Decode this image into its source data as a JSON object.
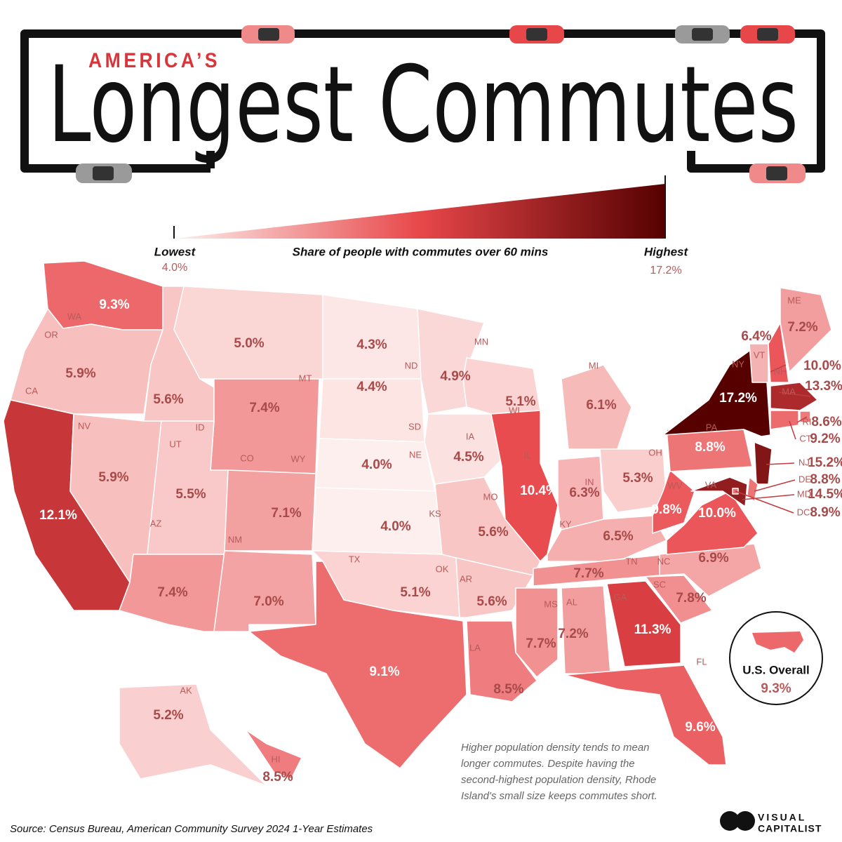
{
  "header": {
    "kicker": "AMERICA’S",
    "title": "Longest Commutes"
  },
  "legend": {
    "low_label": "Lowest",
    "low_value": 4.0,
    "low_value_label": "4.0%",
    "caption": "Share of people with commutes over 60 mins",
    "high_label": "Highest",
    "high_value": 17.2,
    "high_value_label": "17.2%",
    "colors": [
      "#fdefed",
      "#e8474a",
      "#560000"
    ]
  },
  "states": [
    {
      "abbr": "WA",
      "value": 9.3,
      "label": "9.3%"
    },
    {
      "abbr": "OR",
      "value": 5.9,
      "label": "5.9%"
    },
    {
      "abbr": "CA",
      "value": 12.1,
      "label": "12.1%"
    },
    {
      "abbr": "NV",
      "value": 5.9,
      "label": "5.9%"
    },
    {
      "abbr": "ID",
      "value": 5.6,
      "label": "5.6%"
    },
    {
      "abbr": "MT",
      "value": 5.0,
      "label": "5.0%"
    },
    {
      "abbr": "WY",
      "value": 7.4,
      "label": "7.4%"
    },
    {
      "abbr": "UT",
      "value": 5.5,
      "label": "5.5%"
    },
    {
      "abbr": "CO",
      "value": 7.1,
      "label": "7.1%"
    },
    {
      "abbr": "AZ",
      "value": 7.4,
      "label": "7.4%"
    },
    {
      "abbr": "NM",
      "value": 7.0,
      "label": "7.0%"
    },
    {
      "abbr": "ND",
      "value": 4.3,
      "label": "4.3%"
    },
    {
      "abbr": "SD",
      "value": 4.4,
      "label": "4.4%"
    },
    {
      "abbr": "NE",
      "value": 4.0,
      "label": "4.0%"
    },
    {
      "abbr": "KS",
      "value": 4.0,
      "label": "4.0%"
    },
    {
      "abbr": "OK",
      "value": 5.1,
      "label": "5.1%"
    },
    {
      "abbr": "TX",
      "value": 9.1,
      "label": "9.1%"
    },
    {
      "abbr": "MN",
      "value": 4.9,
      "label": "4.9%"
    },
    {
      "abbr": "IA",
      "value": 4.5,
      "label": "4.5%"
    },
    {
      "abbr": "MO",
      "value": 5.6,
      "label": "5.6%"
    },
    {
      "abbr": "AR",
      "value": 5.6,
      "label": "5.6%"
    },
    {
      "abbr": "LA",
      "value": 8.5,
      "label": "8.5%"
    },
    {
      "abbr": "WI",
      "value": 5.1,
      "label": "5.1%"
    },
    {
      "abbr": "IL",
      "value": 10.4,
      "label": "10.4%"
    },
    {
      "abbr": "MI",
      "value": 6.1,
      "label": "6.1%"
    },
    {
      "abbr": "IN",
      "value": 6.3,
      "label": "6.3%"
    },
    {
      "abbr": "OH",
      "value": 5.3,
      "label": "5.3%"
    },
    {
      "abbr": "KY",
      "value": 6.5,
      "label": "6.5%"
    },
    {
      "abbr": "TN",
      "value": 7.7,
      "label": "7.7%"
    },
    {
      "abbr": "MS",
      "value": 7.7,
      "label": "7.7%"
    },
    {
      "abbr": "AL",
      "value": 7.2,
      "label": "7.2%"
    },
    {
      "abbr": "GA",
      "value": 11.3,
      "label": "11.3%"
    },
    {
      "abbr": "FL",
      "value": 9.6,
      "label": "9.6%"
    },
    {
      "abbr": "SC",
      "value": 7.8,
      "label": "7.8%"
    },
    {
      "abbr": "NC",
      "value": 6.9,
      "label": "6.9%"
    },
    {
      "abbr": "VA",
      "value": 10.0,
      "label": "10.0%"
    },
    {
      "abbr": "WV",
      "value": 9.8,
      "label": "9.8%"
    },
    {
      "abbr": "PA",
      "value": 8.8,
      "label": "8.8%"
    },
    {
      "abbr": "NY",
      "value": 17.2,
      "label": "17.2%"
    },
    {
      "abbr": "VT",
      "value": 6.4,
      "label": "6.4%"
    },
    {
      "abbr": "NH",
      "value": 10.0,
      "label": "10.0%"
    },
    {
      "abbr": "ME",
      "value": 7.2,
      "label": "7.2%"
    },
    {
      "abbr": "MA",
      "value": 13.3,
      "label": "13.3%"
    },
    {
      "abbr": "RI",
      "value": 8.6,
      "label": "8.6%"
    },
    {
      "abbr": "CT",
      "value": 9.2,
      "label": "9.2%"
    },
    {
      "abbr": "NJ",
      "value": 15.2,
      "label": "15.2%"
    },
    {
      "abbr": "DE",
      "value": 8.8,
      "label": "8.8%"
    },
    {
      "abbr": "MD",
      "value": 14.5,
      "label": "14.5%"
    },
    {
      "abbr": "DC",
      "value": 8.9,
      "label": "8.9%"
    },
    {
      "abbr": "AK",
      "value": 5.2,
      "label": "5.2%"
    },
    {
      "abbr": "HI",
      "value": 8.5,
      "label": "8.5%"
    }
  ],
  "overall": {
    "label": "U.S. Overall",
    "value": 9.3,
    "value_label": "9.3%"
  },
  "note": [
    "Higher population density tends to mean",
    "longer commutes. Despite having the",
    "second-highest population density, Rhode",
    "Island's small size keeps commutes short."
  ],
  "source": "Source: Census Bureau, American Community Survey 2024 1-Year Estimates",
  "logo": [
    "VISUAL",
    "CAPITALIST"
  ]
}
